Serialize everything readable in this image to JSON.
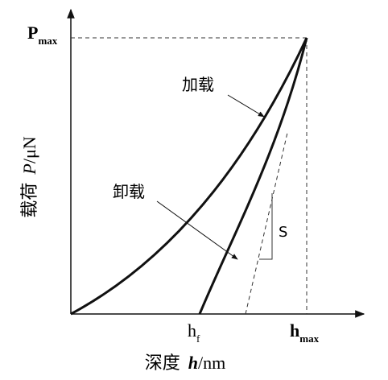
{
  "y_axis": {
    "peak_label": {
      "main": "P",
      "sub": "max"
    },
    "title": {
      "prefix": "载荷",
      "symbol": "P",
      "unit": "/μN"
    }
  },
  "x_axis": {
    "final_depth_label": {
      "main": "h",
      "sub": "f"
    },
    "max_depth_label": {
      "main": "h",
      "sub": "max"
    },
    "title": {
      "prefix": "深度",
      "symbol": "h",
      "unit": "/nm"
    }
  },
  "curves": {
    "loading": "加载",
    "unloading": "卸载",
    "stiffness": "S"
  }
}
